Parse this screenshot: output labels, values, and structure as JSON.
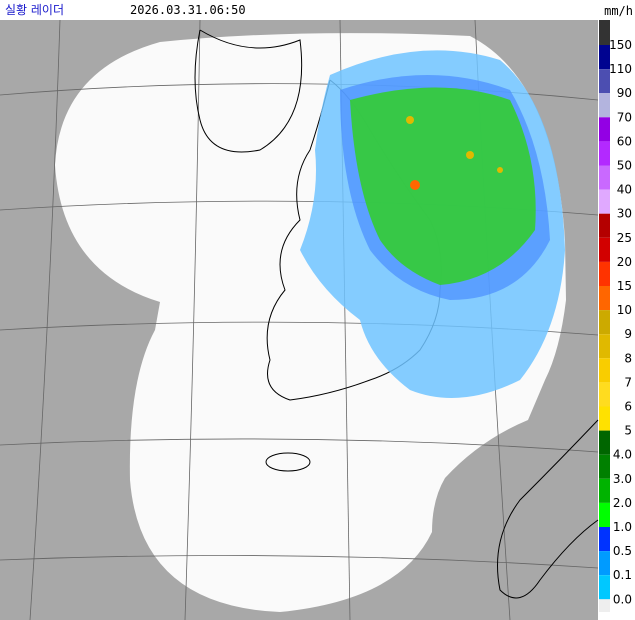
{
  "header": {
    "title": "실황 레이더",
    "time": "2026.03.31.06:50",
    "unit": "mm/h"
  },
  "legend": {
    "labels": [
      "150",
      "110",
      "90",
      "70",
      "60",
      "50",
      "40",
      "30",
      "25",
      "20",
      "15",
      "10",
      "9",
      "8",
      "7",
      "6",
      "5",
      "4.0",
      "3.0",
      "2.0",
      "1.0",
      "0.5",
      "0.1",
      "0.0"
    ],
    "colors": [
      "#333333",
      "#000390",
      "#4c4eb1",
      "#b3b4de",
      "#9300e4",
      "#b329ff",
      "#c969ff",
      "#e0a9ff",
      "#b40000",
      "#d20000",
      "#ff3300",
      "#ff6600",
      "#ccaa00",
      "#e0b900",
      "#f9cd00",
      "#ffdc1f",
      "#ffe100",
      "#006600",
      "#008000",
      "#00b300",
      "#00ff00",
      "#0033ff",
      "#009bff",
      "#00c8ff",
      "#eeeeee"
    ]
  }
}
